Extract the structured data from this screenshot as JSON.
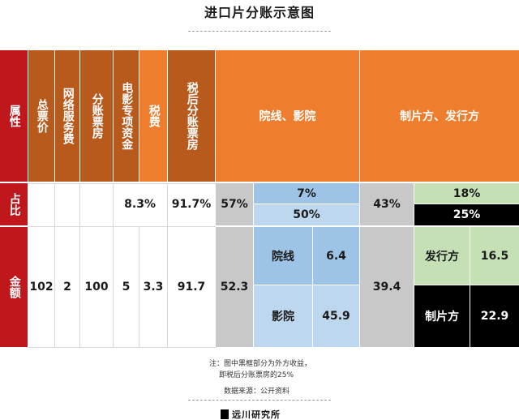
{
  "title": "进口片分账示意图",
  "header": {
    "attribute": "属性",
    "gross": "总票价",
    "network": "网络服务费",
    "split": "分账票房",
    "fund": "电影专项资金",
    "tax": "税费",
    "after_tax": "税后分账票房",
    "cinema": "院线、影院",
    "producer": "制片方、发行方"
  },
  "share_row": {
    "label": "占比",
    "tax": "8.3%",
    "after_tax": "91.7%",
    "cinema": "57%",
    "cinema_sub1": "7%",
    "cinema_sub2": "50%",
    "producer": "43%",
    "producer_sub1": "18%",
    "producer_sub2": "25%"
  },
  "amount_row": {
    "label": "金额",
    "gross": "102",
    "network": "2",
    "split": "100",
    "fund": "5",
    "tax": "3.3",
    "after_tax": "91.7",
    "cinema": "52.3",
    "chain_label": "院线",
    "chain_value": "6.4",
    "theater_label": "影院",
    "theater_value": "45.9",
    "producer": "39.4",
    "distributor_label": "发行方",
    "distributor_value": "16.5",
    "maker_label": "制片方",
    "maker_value": "22.9"
  },
  "notes": {
    "line1": "注：图中黑框部分为外方收益，",
    "line2": "即税后分账票房的25%",
    "source": "数据来源：公开资料"
  },
  "logo": {
    "text": "远川研究所"
  },
  "colors": {
    "red": "#c0171d",
    "dark_orange": "#b85a1c",
    "orange": "#ee7d2e",
    "gray": "#c8c8c8",
    "blue": "#9dc3e6",
    "light_blue": "#bdd7ee",
    "green": "#c5e0b4",
    "black": "#000000"
  }
}
